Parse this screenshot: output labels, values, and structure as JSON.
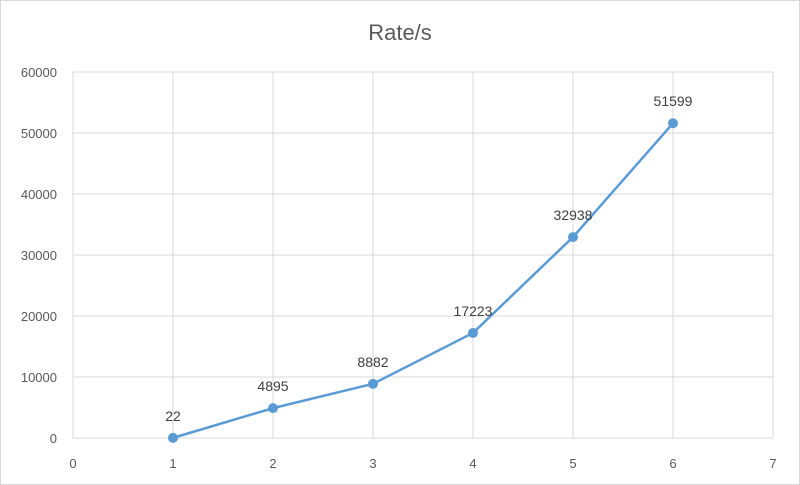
{
  "chart_data": {
    "type": "scatter",
    "title": "Rate/s",
    "xlabel": "",
    "ylabel": "",
    "xlim": [
      0,
      7
    ],
    "ylim": [
      0,
      60000
    ],
    "x_ticks": [
      "0",
      "1",
      "2",
      "3",
      "4",
      "5",
      "6",
      "7"
    ],
    "y_ticks": [
      "0",
      "10000",
      "20000",
      "30000",
      "40000",
      "50000",
      "60000"
    ],
    "grid": true,
    "legend": "none",
    "line_style": "straight lines with markers",
    "series": [
      {
        "color": "#5b9bd5",
        "x": [
          1,
          2,
          3,
          4,
          5,
          6
        ],
        "y": [
          22,
          4895,
          8882,
          17223,
          32938,
          51599
        ],
        "labels": [
          "22",
          "4895",
          "8882",
          "17223",
          "32938",
          "51599"
        ]
      }
    ]
  }
}
